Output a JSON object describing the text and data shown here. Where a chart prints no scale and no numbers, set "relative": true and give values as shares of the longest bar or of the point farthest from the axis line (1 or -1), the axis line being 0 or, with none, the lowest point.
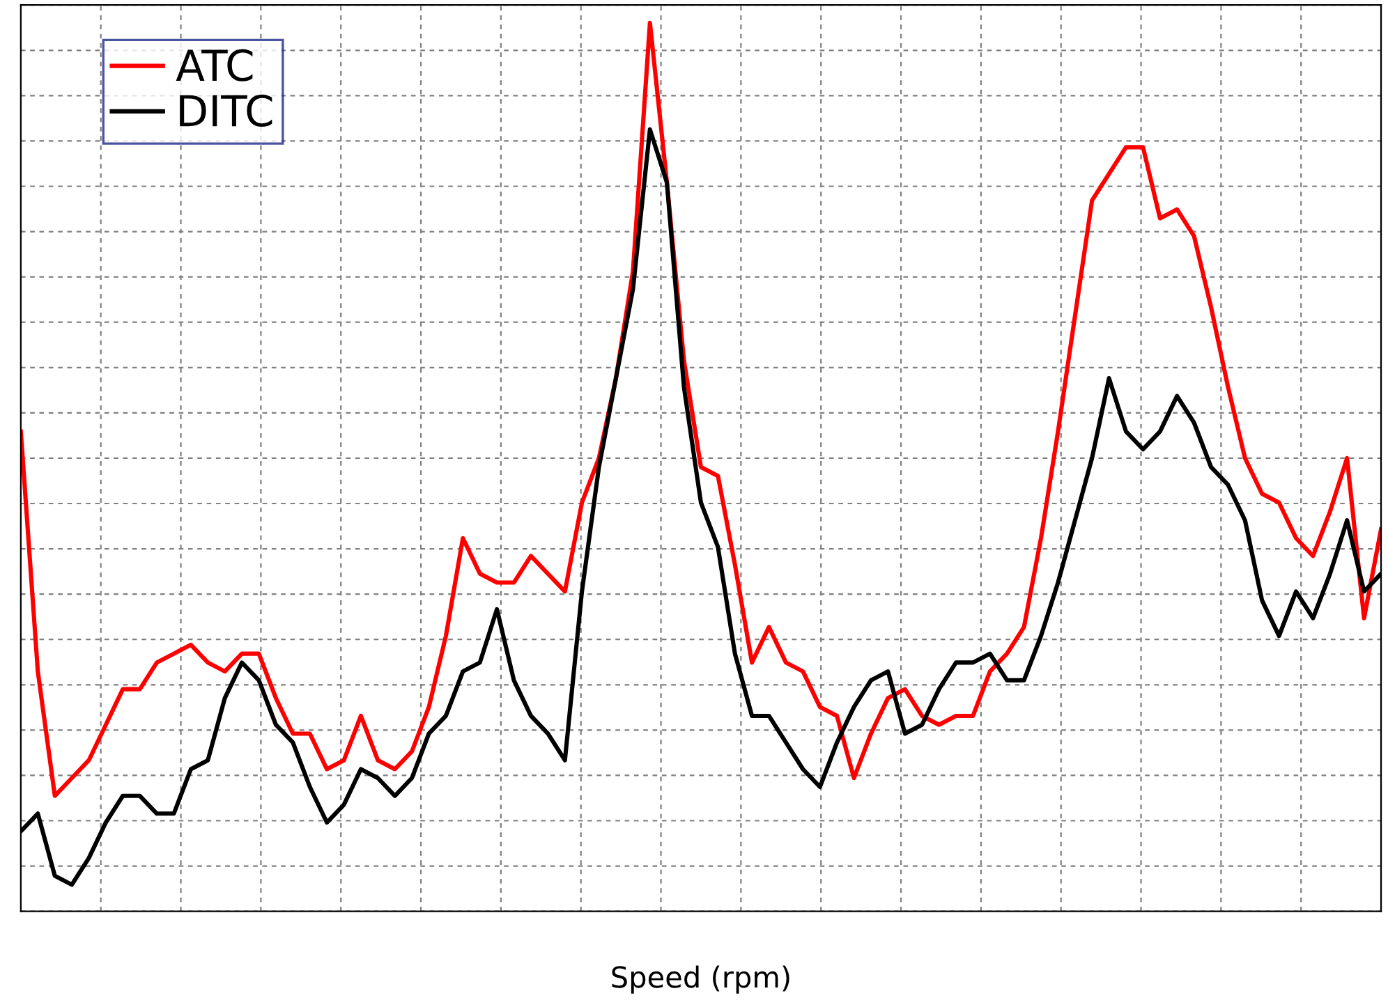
{
  "chart_data": {
    "type": "line",
    "xlabel": "Speed (rpm)",
    "relative": true,
    "grid": true,
    "legend": "top left",
    "tick_labels": false,
    "line_style": "solid",
    "marker": "none",
    "categories": [
      null,
      null,
      null,
      null,
      null,
      null,
      null,
      null,
      null,
      null,
      null,
      null,
      null,
      null,
      null,
      null,
      null,
      null,
      null,
      null,
      null,
      null,
      null,
      null,
      null,
      null,
      null,
      null,
      null,
      null,
      null,
      null,
      null,
      null,
      null,
      null,
      null,
      null,
      null,
      null,
      null,
      null,
      null,
      null,
      null,
      null,
      null,
      null,
      null,
      null,
      null,
      null,
      null,
      null,
      null,
      null,
      null,
      null,
      null,
      null,
      null,
      null,
      null,
      null,
      null,
      null,
      null,
      null,
      null,
      null,
      null,
      null,
      null,
      null,
      null,
      null,
      null,
      null,
      null,
      null,
      null
    ],
    "series": [
      {
        "name": "ATC",
        "color": "#ff0000",
        "values": [
          0.54,
          0.27,
          0.13,
          0.15,
          0.17,
          0.21,
          0.25,
          0.25,
          0.28,
          0.29,
          0.3,
          0.28,
          0.27,
          0.29,
          0.29,
          0.24,
          0.2,
          0.2,
          0.16,
          0.17,
          0.22,
          0.17,
          0.16,
          0.18,
          0.23,
          0.31,
          0.42,
          0.38,
          0.37,
          0.37,
          0.4,
          0.38,
          0.36,
          0.46,
          0.51,
          0.6,
          0.72,
          1.0,
          0.82,
          0.62,
          0.5,
          0.49,
          0.39,
          0.28,
          0.32,
          0.28,
          0.27,
          0.23,
          0.22,
          0.15,
          0.2,
          0.24,
          0.25,
          0.22,
          0.21,
          0.22,
          0.22,
          0.27,
          0.29,
          0.32,
          0.42,
          0.54,
          0.67,
          0.8,
          0.83,
          0.86,
          0.86,
          0.78,
          0.79,
          0.76,
          0.68,
          0.59,
          0.51,
          0.47,
          0.46,
          0.42,
          0.4,
          0.45,
          0.51,
          0.33,
          0.43
        ]
      },
      {
        "name": "DITC",
        "color": "#000000",
        "values": [
          0.09,
          0.11,
          0.04,
          0.03,
          0.06,
          0.1,
          0.13,
          0.13,
          0.11,
          0.11,
          0.16,
          0.17,
          0.24,
          0.28,
          0.26,
          0.21,
          0.19,
          0.14,
          0.1,
          0.12,
          0.16,
          0.15,
          0.13,
          0.15,
          0.2,
          0.22,
          0.27,
          0.28,
          0.34,
          0.26,
          0.22,
          0.2,
          0.17,
          0.36,
          0.5,
          0.6,
          0.7,
          0.88,
          0.82,
          0.59,
          0.46,
          0.41,
          0.29,
          0.22,
          0.22,
          0.19,
          0.16,
          0.14,
          0.19,
          0.23,
          0.26,
          0.27,
          0.2,
          0.21,
          0.25,
          0.28,
          0.28,
          0.29,
          0.26,
          0.26,
          0.31,
          0.37,
          0.44,
          0.51,
          0.6,
          0.54,
          0.52,
          0.54,
          0.58,
          0.55,
          0.5,
          0.48,
          0.44,
          0.35,
          0.31,
          0.36,
          0.33,
          0.38,
          0.44,
          0.36,
          0.38
        ]
      }
    ]
  }
}
